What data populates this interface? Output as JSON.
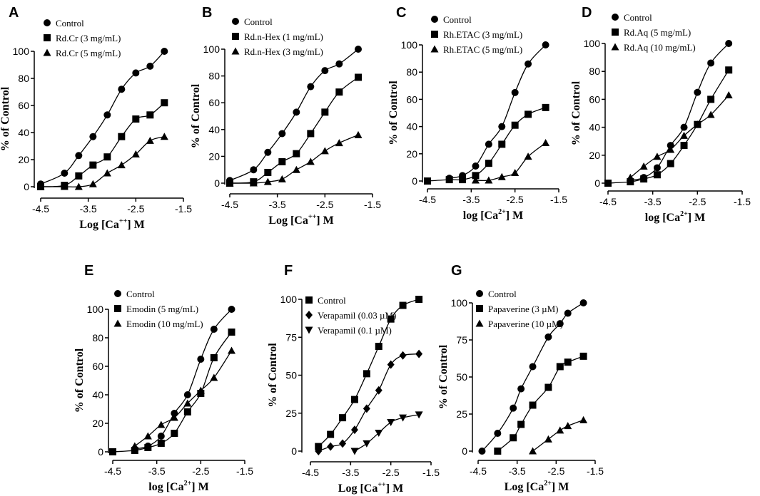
{
  "chart_data": [
    {
      "panel": "A",
      "type": "line",
      "xlabel": "Log [Ca++] M",
      "ylabel": "% of Control",
      "xlim": [
        -4.5,
        -1.5
      ],
      "ylim": [
        0,
        100
      ],
      "xticks": [
        "-4.5",
        "-3.5",
        "-2.5",
        "-1.5"
      ],
      "yticks": [
        "0",
        "20",
        "40",
        "60",
        "80",
        "100"
      ],
      "legend_position": "top-left",
      "series": [
        {
          "name": "Control",
          "marker": "circle",
          "x": [
            -4.5,
            -4,
            -3.7,
            -3.4,
            -3.1,
            -2.8,
            -2.5,
            -2.2,
            -1.9
          ],
          "values": [
            2,
            10,
            23,
            37,
            53,
            72,
            84,
            89,
            100
          ]
        },
        {
          "name": "Rd.Cr (3 mg/mL)",
          "marker": "square",
          "x": [
            -4.5,
            -4,
            -3.7,
            -3.4,
            -3.1,
            -2.8,
            -2.5,
            -2.2,
            -1.9
          ],
          "values": [
            0,
            1,
            8,
            16,
            22,
            37,
            50,
            53,
            62
          ]
        },
        {
          "name": "Rd.Cr (5 mg/mL)",
          "marker": "triangle",
          "x": [
            -4.5,
            -4,
            -3.7,
            -3.4,
            -3.1,
            -2.8,
            -2.5,
            -2.2,
            -1.9
          ],
          "values": [
            0,
            0,
            0,
            2,
            10,
            16,
            24,
            34,
            37
          ]
        }
      ]
    },
    {
      "panel": "B",
      "type": "line",
      "xlabel": "Log [Ca++] M",
      "ylabel": "% of Control",
      "xlim": [
        -4.5,
        -1.5
      ],
      "ylim": [
        0,
        100
      ],
      "xticks": [
        "-4.5",
        "-3.5",
        "-2.5",
        "-1.5"
      ],
      "yticks": [
        "0",
        "20",
        "40",
        "60",
        "80",
        "100"
      ],
      "legend_position": "top-left",
      "series": [
        {
          "name": "Control",
          "marker": "circle",
          "x": [
            -4.5,
            -4,
            -3.7,
            -3.4,
            -3.1,
            -2.8,
            -2.5,
            -2.2,
            -1.8
          ],
          "values": [
            2,
            10,
            23,
            37,
            53,
            72,
            84,
            89,
            100
          ]
        },
        {
          "name": "Rd.n-Hex (1 mg/mL)",
          "marker": "square",
          "x": [
            -4.5,
            -4,
            -3.7,
            -3.4,
            -3.1,
            -2.8,
            -2.5,
            -2.2,
            -1.8
          ],
          "values": [
            0,
            1,
            8,
            16,
            22,
            37,
            53,
            68,
            79
          ]
        },
        {
          "name": "Rd.n-Hex (3 mg/mL)",
          "marker": "triangle",
          "x": [
            -4.5,
            -4,
            -3.7,
            -3.4,
            -3.1,
            -2.8,
            -2.5,
            -2.2,
            -1.8
          ],
          "values": [
            0,
            0,
            1,
            3,
            10,
            16,
            24,
            30,
            36
          ]
        }
      ]
    },
    {
      "panel": "C",
      "type": "line",
      "xlabel": "log [Ca2+] M",
      "ylabel": "% of Control",
      "xlim": [
        -4.5,
        -1.5
      ],
      "ylim": [
        0,
        100
      ],
      "xticks": [
        "-4.5",
        "-3.5",
        "-2.5",
        "-1.5"
      ],
      "yticks": [
        "0",
        "20",
        "40",
        "60",
        "80",
        "100"
      ],
      "legend_position": "top-left",
      "series": [
        {
          "name": "Control",
          "marker": "circle",
          "x": [
            -4,
            -3.7,
            -3.4,
            -3.1,
            -2.8,
            -2.5,
            -2.2,
            -1.8
          ],
          "values": [
            2,
            4,
            11,
            27,
            40,
            65,
            86,
            100
          ]
        },
        {
          "name": "Rh.ETAC (3 mg/mL)",
          "marker": "square",
          "x": [
            -4.5,
            -4,
            -3.7,
            -3.4,
            -3.1,
            -2.8,
            -2.5,
            -2.2,
            -1.8
          ],
          "values": [
            0,
            1,
            1,
            4,
            13,
            27,
            41,
            49,
            54
          ]
        },
        {
          "name": "Rh.ETAC (5 mg/mL)",
          "marker": "triangle",
          "x": [
            -3.4,
            -3.1,
            -2.8,
            -2.5,
            -2.2,
            -1.8
          ],
          "values": [
            0.5,
            0.5,
            3,
            6,
            18,
            28
          ]
        }
      ]
    },
    {
      "panel": "D",
      "type": "line",
      "xlabel": "log [Ca2+] M",
      "ylabel": "% of Control",
      "xlim": [
        -4.5,
        -1.5
      ],
      "ylim": [
        0,
        100
      ],
      "xticks": [
        "-4.5",
        "-3.5",
        "-2.5",
        "-1.5"
      ],
      "yticks": [
        "0",
        "20",
        "40",
        "60",
        "80",
        "100"
      ],
      "legend_position": "top-left",
      "series": [
        {
          "name": "Control",
          "marker": "circle",
          "x": [
            -4,
            -3.7,
            -3.4,
            -3.1,
            -2.8,
            -2.5,
            -2.2,
            -1.8
          ],
          "values": [
            2,
            4,
            11,
            27,
            40,
            65,
            86,
            100
          ]
        },
        {
          "name": "Rd.Aq (5 mg/mL)",
          "marker": "square",
          "x": [
            -4.5,
            -4,
            -3.7,
            -3.4,
            -3.1,
            -2.8,
            -2.5,
            -2.2,
            -1.8
          ],
          "values": [
            0,
            1,
            3,
            6,
            14,
            27,
            42,
            60,
            81
          ]
        },
        {
          "name": "Rd.Aq (10 mg/mL)",
          "marker": "triangle",
          "x": [
            -4,
            -3.7,
            -3.4,
            -3.1,
            -2.8,
            -2.5,
            -2.2,
            -1.8
          ],
          "values": [
            4,
            12,
            19,
            24,
            34,
            42,
            49,
            63
          ]
        }
      ]
    },
    {
      "panel": "E",
      "type": "line",
      "xlabel": "log [Ca2+] M",
      "ylabel": "% of Control",
      "xlim": [
        -4.5,
        -1.5
      ],
      "ylim": [
        0,
        100
      ],
      "xticks": [
        "-4.5",
        "-3.5",
        "-2.5",
        "-1.5"
      ],
      "yticks": [
        "0",
        "20",
        "40",
        "60",
        "80",
        "100"
      ],
      "legend_position": "top-left",
      "series": [
        {
          "name": "Control",
          "marker": "circle",
          "x": [
            -4,
            -3.7,
            -3.4,
            -3.1,
            -2.8,
            -2.5,
            -2.2,
            -1.8
          ],
          "values": [
            2,
            4,
            11,
            27,
            40,
            65,
            86,
            100
          ]
        },
        {
          "name": "Emodin (5 mg/mL)",
          "marker": "square",
          "x": [
            -4.5,
            -4,
            -3.7,
            -3.4,
            -3.1,
            -2.8,
            -2.5,
            -2.2,
            -1.8
          ],
          "values": [
            0,
            1,
            3,
            6,
            13,
            28,
            41,
            66,
            84
          ]
        },
        {
          "name": "Emodin (10 mg/mL)",
          "marker": "triangle",
          "x": [
            -4,
            -3.7,
            -3.4,
            -3.1,
            -2.8,
            -2.5,
            -2.2,
            -1.8
          ],
          "values": [
            4,
            11,
            19,
            24,
            34,
            43,
            52,
            71
          ]
        }
      ]
    },
    {
      "panel": "F",
      "type": "line",
      "xlabel": "Log [Ca++] M",
      "ylabel": "% of Control",
      "xlim": [
        -4.5,
        -1.5
      ],
      "ylim": [
        0,
        100
      ],
      "xticks": [
        "-4.5",
        "-3.5",
        "-2.5",
        "-1.5"
      ],
      "yticks": [
        "0",
        "25",
        "50",
        "75",
        "100"
      ],
      "legend_position": "top-left",
      "series": [
        {
          "name": "Control",
          "marker": "square",
          "x": [
            -4.3,
            -4,
            -3.7,
            -3.4,
            -3.1,
            -2.8,
            -2.5,
            -2.2,
            -1.8
          ],
          "values": [
            3,
            11,
            22,
            34,
            51,
            69,
            87,
            96,
            100
          ]
        },
        {
          "name": "Verapamil (0.03 µM)",
          "marker": "diamond",
          "x": [
            -4.3,
            -4,
            -3.7,
            -3.4,
            -3.1,
            -2.8,
            -2.5,
            -2.2,
            -1.8
          ],
          "values": [
            0,
            3,
            5,
            14,
            28,
            40,
            57,
            63,
            64
          ]
        },
        {
          "name": "Verapamil (0.1 µM)",
          "marker": "triangle-down",
          "x": [
            -3.4,
            -3.1,
            -2.8,
            -2.5,
            -2.2,
            -1.8
          ],
          "values": [
            0,
            5,
            12,
            19,
            22,
            24
          ]
        }
      ]
    },
    {
      "panel": "G",
      "type": "line",
      "xlabel": "Log [Ca2+] M",
      "ylabel": "% of Control",
      "xlim": [
        -4.5,
        -1.5
      ],
      "ylim": [
        0,
        100
      ],
      "xticks": [
        "-4.5",
        "-3.5",
        "-2.5",
        "-1.5"
      ],
      "yticks": [
        "0",
        "25",
        "50",
        "75",
        "100"
      ],
      "legend_position": "top-left",
      "series": [
        {
          "name": "Control",
          "marker": "circle",
          "x": [
            -4.4,
            -4,
            -3.6,
            -3.4,
            -3.1,
            -2.7,
            -2.4,
            -2.2,
            -1.8
          ],
          "values": [
            0,
            12,
            29,
            42,
            57,
            77,
            86,
            93,
            100
          ]
        },
        {
          "name": "Papaverine (3 µM)",
          "marker": "square",
          "x": [
            -4,
            -3.6,
            -3.4,
            -3.1,
            -2.7,
            -2.4,
            -2.2,
            -1.8
          ],
          "values": [
            0,
            9,
            18,
            31,
            43,
            57,
            60,
            64
          ]
        },
        {
          "name": "Papaverine (10 µM)",
          "marker": "triangle",
          "x": [
            -3.1,
            -2.7,
            -2.4,
            -2.2,
            -1.8
          ],
          "values": [
            0,
            8,
            14,
            17,
            21
          ]
        }
      ]
    }
  ]
}
